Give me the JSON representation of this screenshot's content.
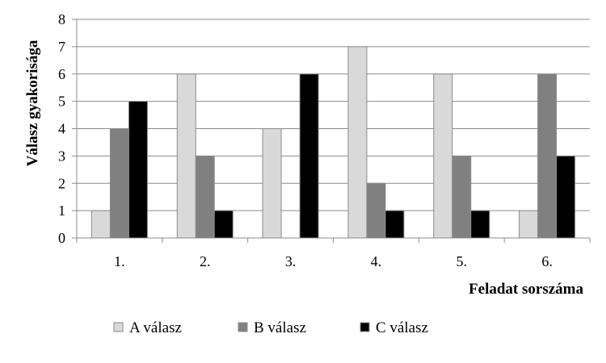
{
  "chart_data": {
    "type": "bar",
    "categories": [
      "1.",
      "2.",
      "3.",
      "4.",
      "5.",
      "6."
    ],
    "series": [
      {
        "name": "A válasz",
        "values": [
          1,
          6,
          4,
          7,
          6,
          1
        ],
        "color": "#d9d9d9"
      },
      {
        "name": "B válasz",
        "values": [
          4,
          3,
          0,
          2,
          3,
          6
        ],
        "color": "#808080"
      },
      {
        "name": "C válasz",
        "values": [
          5,
          1,
          6,
          1,
          1,
          3
        ],
        "color": "#000000"
      }
    ],
    "xlabel": "Feladat sorszáma",
    "ylabel": "Válasz gyakorisága",
    "ylim": [
      0,
      8
    ],
    "yticks": [
      0,
      1,
      2,
      3,
      4,
      5,
      6,
      7,
      8
    ],
    "grid": true,
    "legend_position": "bottom"
  }
}
